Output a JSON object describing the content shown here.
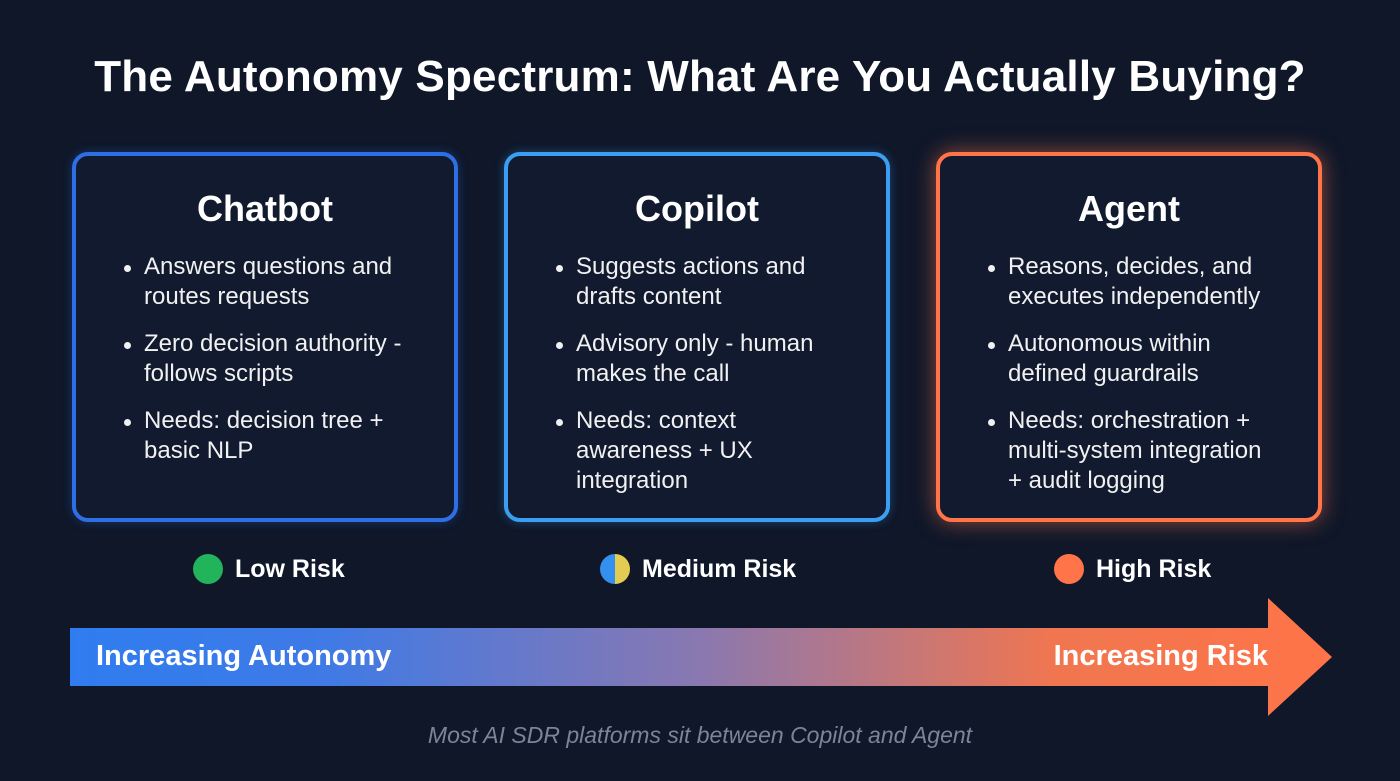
{
  "title": "The Autonomy Spectrum: What Are You Actually Buying?",
  "cards": [
    {
      "heading": "Chatbot",
      "border_color": "#2f6fe4",
      "bullets": [
        "Answers questions and\nroutes requests",
        "Zero decision authority -\nfollows scripts",
        "Needs: decision tree +\nbasic NLP"
      ]
    },
    {
      "heading": "Copilot",
      "border_color": "#3b9ef2",
      "bullets": [
        "Suggests actions and\ndrafts content",
        "Advisory only - human\nmakes the call",
        "Needs: context\nawareness + UX\nintegration"
      ]
    },
    {
      "heading": "Agent",
      "border_color": "#ff7448",
      "bullets": [
        "Reasons, decides, and\nexecutes independently",
        "Autonomous within\ndefined guardrails",
        "Needs: orchestration +\nmulti-system integration\n+ audit logging"
      ]
    }
  ],
  "risks": [
    {
      "label": "Low Risk",
      "color": "#22b45a"
    },
    {
      "label": "Medium Risk",
      "colors": [
        "#3390ee",
        "#e4cc52"
      ]
    },
    {
      "label": "High Risk",
      "color": "#ff7448"
    }
  ],
  "arrow": {
    "left_label": "Increasing Autonomy",
    "right_label": "Increasing Risk",
    "gradient": [
      "#2f7cf0",
      "#8a78b0",
      "#ff7448"
    ]
  },
  "footnote": "Most AI SDR platforms sit between Copilot and Agent"
}
